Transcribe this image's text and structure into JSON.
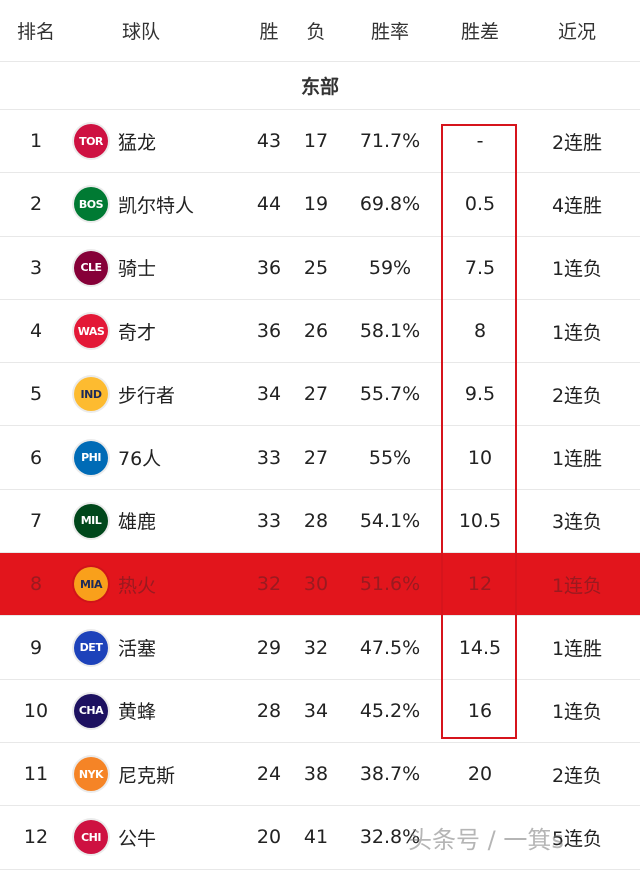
{
  "header": {
    "rank": "排名",
    "team": "球队",
    "wins": "胜",
    "losses": "负",
    "pct": "胜率",
    "gb": "胜差",
    "streak": "近况"
  },
  "conference": "东部",
  "rows": [
    {
      "rank": "1",
      "abbr": "TOR",
      "name": "猛龙",
      "w": "43",
      "l": "17",
      "pct": "71.7%",
      "gb": "-",
      "streak": "2连胜",
      "color": "#ce1141"
    },
    {
      "rank": "2",
      "abbr": "BOS",
      "name": "凯尔特人",
      "w": "44",
      "l": "19",
      "pct": "69.8%",
      "gb": "0.5",
      "streak": "4连胜",
      "color": "#007a33"
    },
    {
      "rank": "3",
      "abbr": "CLE",
      "name": "骑士",
      "w": "36",
      "l": "25",
      "pct": "59%",
      "gb": "7.5",
      "streak": "1连负",
      "color": "#860038"
    },
    {
      "rank": "4",
      "abbr": "WAS",
      "name": "奇才",
      "w": "36",
      "l": "26",
      "pct": "58.1%",
      "gb": "8",
      "streak": "1连负",
      "color": "#e31837"
    },
    {
      "rank": "5",
      "abbr": "IND",
      "name": "步行者",
      "w": "34",
      "l": "27",
      "pct": "55.7%",
      "gb": "9.5",
      "streak": "2连负",
      "color": "#fdbb30"
    },
    {
      "rank": "6",
      "abbr": "PHI",
      "name": "76人",
      "w": "33",
      "l": "27",
      "pct": "55%",
      "gb": "10",
      "streak": "1连胜",
      "color": "#006bb6"
    },
    {
      "rank": "7",
      "abbr": "MIL",
      "name": "雄鹿",
      "w": "33",
      "l": "28",
      "pct": "54.1%",
      "gb": "10.5",
      "streak": "3连负",
      "color": "#00471b"
    },
    {
      "rank": "8",
      "abbr": "MIA",
      "name": "热火",
      "w": "32",
      "l": "30",
      "pct": "51.6%",
      "gb": "12",
      "streak": "1连负",
      "color": "#f9a01b"
    },
    {
      "rank": "9",
      "abbr": "DET",
      "name": "活塞",
      "w": "29",
      "l": "32",
      "pct": "47.5%",
      "gb": "14.5",
      "streak": "1连胜",
      "color": "#1d42ba"
    },
    {
      "rank": "10",
      "abbr": "CHA",
      "name": "黄蜂",
      "w": "28",
      "l": "34",
      "pct": "45.2%",
      "gb": "16",
      "streak": "1连负",
      "color": "#1d1160"
    },
    {
      "rank": "11",
      "abbr": "NYK",
      "name": "尼克斯",
      "w": "24",
      "l": "38",
      "pct": "38.7%",
      "gb": "20",
      "streak": "2连负",
      "color": "#f58426"
    },
    {
      "rank": "12",
      "abbr": "CHI",
      "name": "公牛",
      "w": "20",
      "l": "41",
      "pct": "32.8%",
      "gb": "",
      "streak": "5连负",
      "color": "#ce1141"
    }
  ],
  "highlighted_rank": "8",
  "watermark": "头条号 / 一箕s"
}
